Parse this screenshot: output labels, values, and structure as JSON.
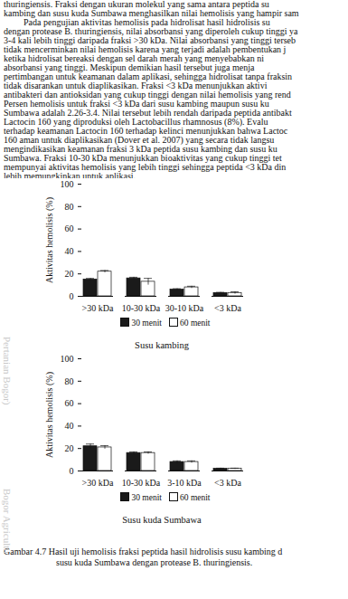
{
  "paragraphs": [
    [
      "thuringiensis. Fraksi dengan ukuran molekul yang sama antara peptida su",
      "kambing dan susu kuda Sumbawa menghasilkan nilai hemolisis yang hampir sam"
    ],
    [
      "Pada pengujian aktivitas hemolisis pada hidrolisat hasil hidrolisis su",
      "dengan protease B. thuringiensis, nilai absorbansi yang diperoleh cukup tinggi ya",
      "3-4 kali lebih tinggi daripada fraksi >30 kDa. Nilai absorbansi yang tinggi terseb",
      "tidak mencerminkan nilai hemolisis karena yang terjadi adalah pembentukan j",
      "ketika hidrolisat bereaksi dengan sel darah merah yang menyebabkan ni",
      "absorbansi yang tinggi. Meskipun demikian hasil tersebut juga menja",
      "pertimbangan untuk keamanan dalam aplikasi, sehingga hidrolisat tanpa fraksin",
      "tidak disarankan untuk diaplikasikan. Fraksi <3 kDa menunjukkan aktivi",
      "antibakteri dan antioksidan yang cukup tinggi dengan nilai hemolisis yang rend",
      "Persen hemolisis untuk fraksi <3 kDa dari susu kambing maupun susu ku",
      "Sumbawa adalah 2.26-3.4. Nilai tersebut lebih rendah daripada peptida antibakt",
      "Lactocin 160 yang diproduksi oleh Lactobacillus rhamnosus (8%). Evalu",
      "terhadap keamanan Lactocin 160 terhadap kelinci menunjukkan bahwa Lactoc",
      "160 aman untuk diaplikasikan (Dover et al. 2007) yang secara tidak langsu",
      "mengindikasikan keamanan fraksi 3 kDa peptida susu kambing  dan susu ku",
      "Sumbawa.  Fraksi 10-30 kDa menunjukkan bioaktivitas yang cukup tinggi tet",
      "mempunyai aktivitas hemolisis yang lebih tinggi sehingga peptida <3 kDa din",
      "lebih memungkinkan untuk aplikasi."
    ]
  ],
  "caption": [
    "Gambar 4.7 Hasil uji hemolisis fraksi peptida hasil hidrolisis susu kambing d",
    "susu kuda Sumbawa dengan protease B. thuringiensis."
  ],
  "watermarks": [
    "Pertanian Bogor)",
    "Bogor Agricultu"
  ],
  "chart_data": [
    {
      "type": "bar",
      "title": "Susu kambing",
      "y_label": "Aktivitas hemolisis (%)",
      "categories": [
        ">30 kDa",
        "10-30 kDa",
        "30-10 kDa",
        "<3 kDa"
      ],
      "series": [
        {
          "name": "30 menit",
          "color": "#1a1a1a",
          "values": [
            15,
            16,
            6,
            3
          ],
          "errors": [
            1,
            1,
            0.8,
            0.5
          ]
        },
        {
          "name": "60 menit",
          "color": "#ffffff",
          "values": [
            22,
            13,
            8,
            3
          ],
          "errors": [
            1,
            3,
            1,
            1
          ]
        }
      ],
      "ylim": [
        0,
        100
      ],
      "yticks": [
        0,
        20,
        40,
        60,
        80,
        100
      ],
      "legend": "bottom"
    },
    {
      "type": "bar",
      "title": "Susu kuda Sumbawa",
      "y_label": "Aktivitas hemolisis (%)",
      "categories": [
        ">30 kDa",
        "10-30 kDa",
        "3-10 kDa",
        "<3 kDa"
      ],
      "series": [
        {
          "name": "30 menit",
          "color": "#1a1a1a",
          "values": [
            22,
            16,
            8,
            2
          ],
          "errors": [
            2,
            1,
            1,
            0.5
          ]
        },
        {
          "name": "60 menit",
          "color": "#ffffff",
          "values": [
            21,
            16,
            8,
            2
          ],
          "errors": [
            1.5,
            1,
            1,
            0.5
          ]
        }
      ],
      "ylim": [
        0,
        100
      ],
      "yticks": [
        0,
        20,
        40,
        60,
        80,
        100
      ],
      "legend": "bottom"
    }
  ]
}
